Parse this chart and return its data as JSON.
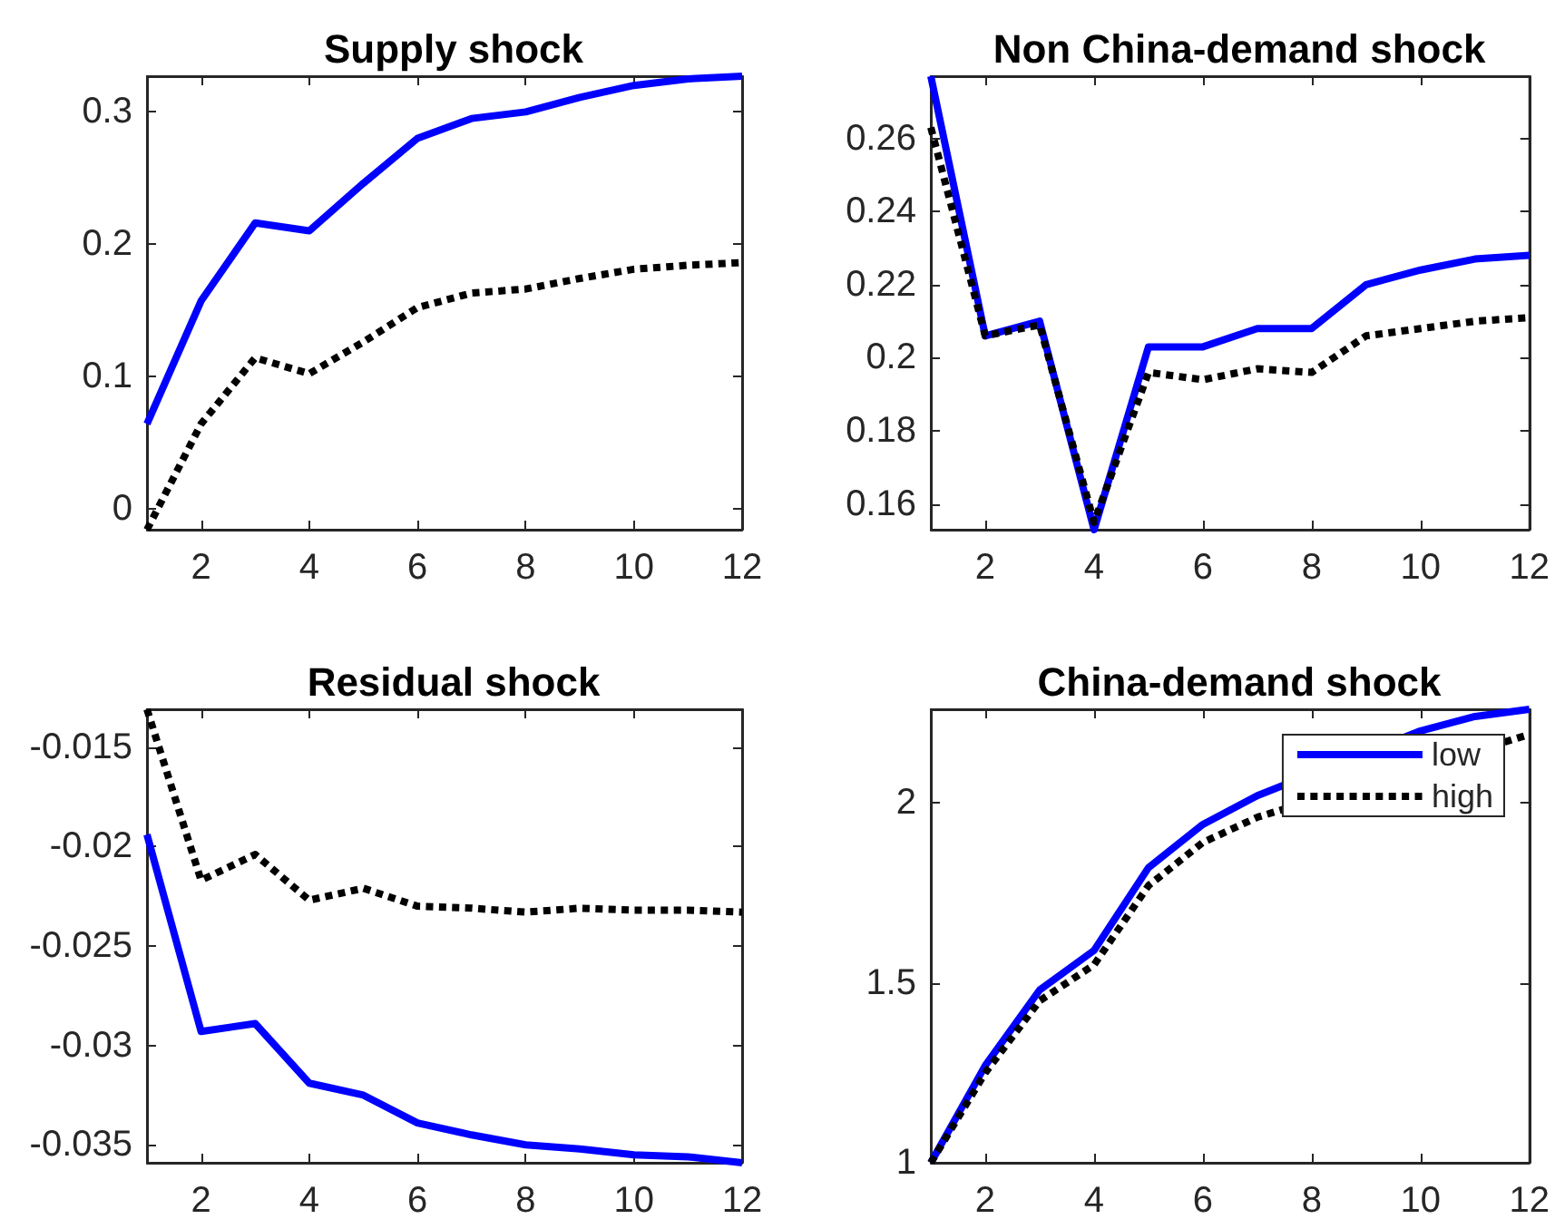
{
  "chart_data": [
    {
      "type": "line",
      "title": "Supply shock",
      "x": [
        1,
        2,
        3,
        4,
        5,
        6,
        7,
        8,
        9,
        10,
        11,
        12
      ],
      "series": [
        {
          "color": "#0000ff",
          "line_style": "solid",
          "values": [
            0.064,
            0.157,
            0.216,
            0.21,
            0.246,
            0.28,
            0.295,
            0.3,
            0.311,
            0.32,
            0.325,
            0.327
          ]
        },
        {
          "color": "#000000",
          "line_style": "dotted",
          "values": [
            -0.016,
            0.064,
            0.114,
            0.102,
            0.126,
            0.152,
            0.163,
            0.166,
            0.174,
            0.181,
            0.184,
            0.186
          ]
        }
      ],
      "xlim": [
        1,
        12
      ],
      "xticks": [
        2,
        4,
        6,
        8,
        10,
        12
      ],
      "ylim": [
        -0.016,
        0.327
      ],
      "yticks": [
        0,
        0.1,
        0.2,
        0.3
      ],
      "marker": "none"
    },
    {
      "type": "line",
      "title": "Non China-demand shock",
      "x": [
        1,
        2,
        3,
        4,
        5,
        6,
        7,
        8,
        9,
        10,
        11,
        12
      ],
      "series": [
        {
          "color": "#0000ff",
          "line_style": "solid",
          "values": [
            0.277,
            0.206,
            0.21,
            0.153,
            0.203,
            0.203,
            0.208,
            0.208,
            0.22,
            0.224,
            0.227,
            0.228
          ]
        },
        {
          "color": "#000000",
          "line_style": "dotted",
          "values": [
            0.263,
            0.206,
            0.209,
            0.155,
            0.196,
            0.194,
            0.197,
            0.196,
            0.206,
            0.208,
            0.21,
            0.211
          ]
        }
      ],
      "xlim": [
        1,
        12
      ],
      "xticks": [
        2,
        4,
        6,
        8,
        10,
        12
      ],
      "ylim": [
        0.153,
        0.277
      ],
      "yticks": [
        0.16,
        0.18,
        0.2,
        0.22,
        0.24,
        0.26
      ],
      "marker": "none"
    },
    {
      "type": "line",
      "title": "Residual shock",
      "x": [
        1,
        2,
        3,
        4,
        5,
        6,
        7,
        8,
        9,
        10,
        11,
        12
      ],
      "series": [
        {
          "color": "#0000ff",
          "line_style": "solid",
          "values": [
            -0.0194,
            -0.0293,
            -0.0289,
            -0.0319,
            -0.0325,
            -0.0339,
            -0.0345,
            -0.035,
            -0.0352,
            -0.0355,
            -0.0356,
            -0.0359
          ]
        },
        {
          "color": "#000000",
          "line_style": "dotted",
          "values": [
            -0.0131,
            -0.0217,
            -0.0204,
            -0.0227,
            -0.0221,
            -0.023,
            -0.0231,
            -0.0233,
            -0.0231,
            -0.0232,
            -0.0232,
            -0.0233
          ]
        }
      ],
      "xlim": [
        1,
        12
      ],
      "xticks": [
        2,
        4,
        6,
        8,
        10,
        12
      ],
      "ylim": [
        -0.0359,
        -0.0131
      ],
      "yticks": [
        -0.035,
        -0.03,
        -0.025,
        -0.02,
        -0.015
      ],
      "marker": "none"
    },
    {
      "type": "line",
      "title": "China-demand shock",
      "x": [
        1,
        2,
        3,
        4,
        5,
        6,
        7,
        8,
        9,
        10,
        11,
        12
      ],
      "series": [
        {
          "name": "low",
          "color": "#0000ff",
          "line_style": "solid",
          "values": [
            1,
            1.27,
            1.48,
            1.59,
            1.82,
            1.94,
            2.02,
            null,
            null,
            2.2,
            2.24,
            2.26
          ]
        },
        {
          "name": "high",
          "color": "#000000",
          "line_style": "dotted",
          "values": [
            1,
            1.25,
            1.45,
            1.55,
            1.77,
            1.89,
            1.96,
            null,
            null,
            null,
            null,
            2.19
          ]
        }
      ],
      "xlim": [
        1,
        12
      ],
      "xticks": [
        2,
        4,
        6,
        8,
        10,
        12
      ],
      "ylim": [
        1,
        2.26
      ],
      "yticks": [
        1,
        1.5,
        2
      ],
      "marker": "none",
      "legend": "top right"
    }
  ]
}
